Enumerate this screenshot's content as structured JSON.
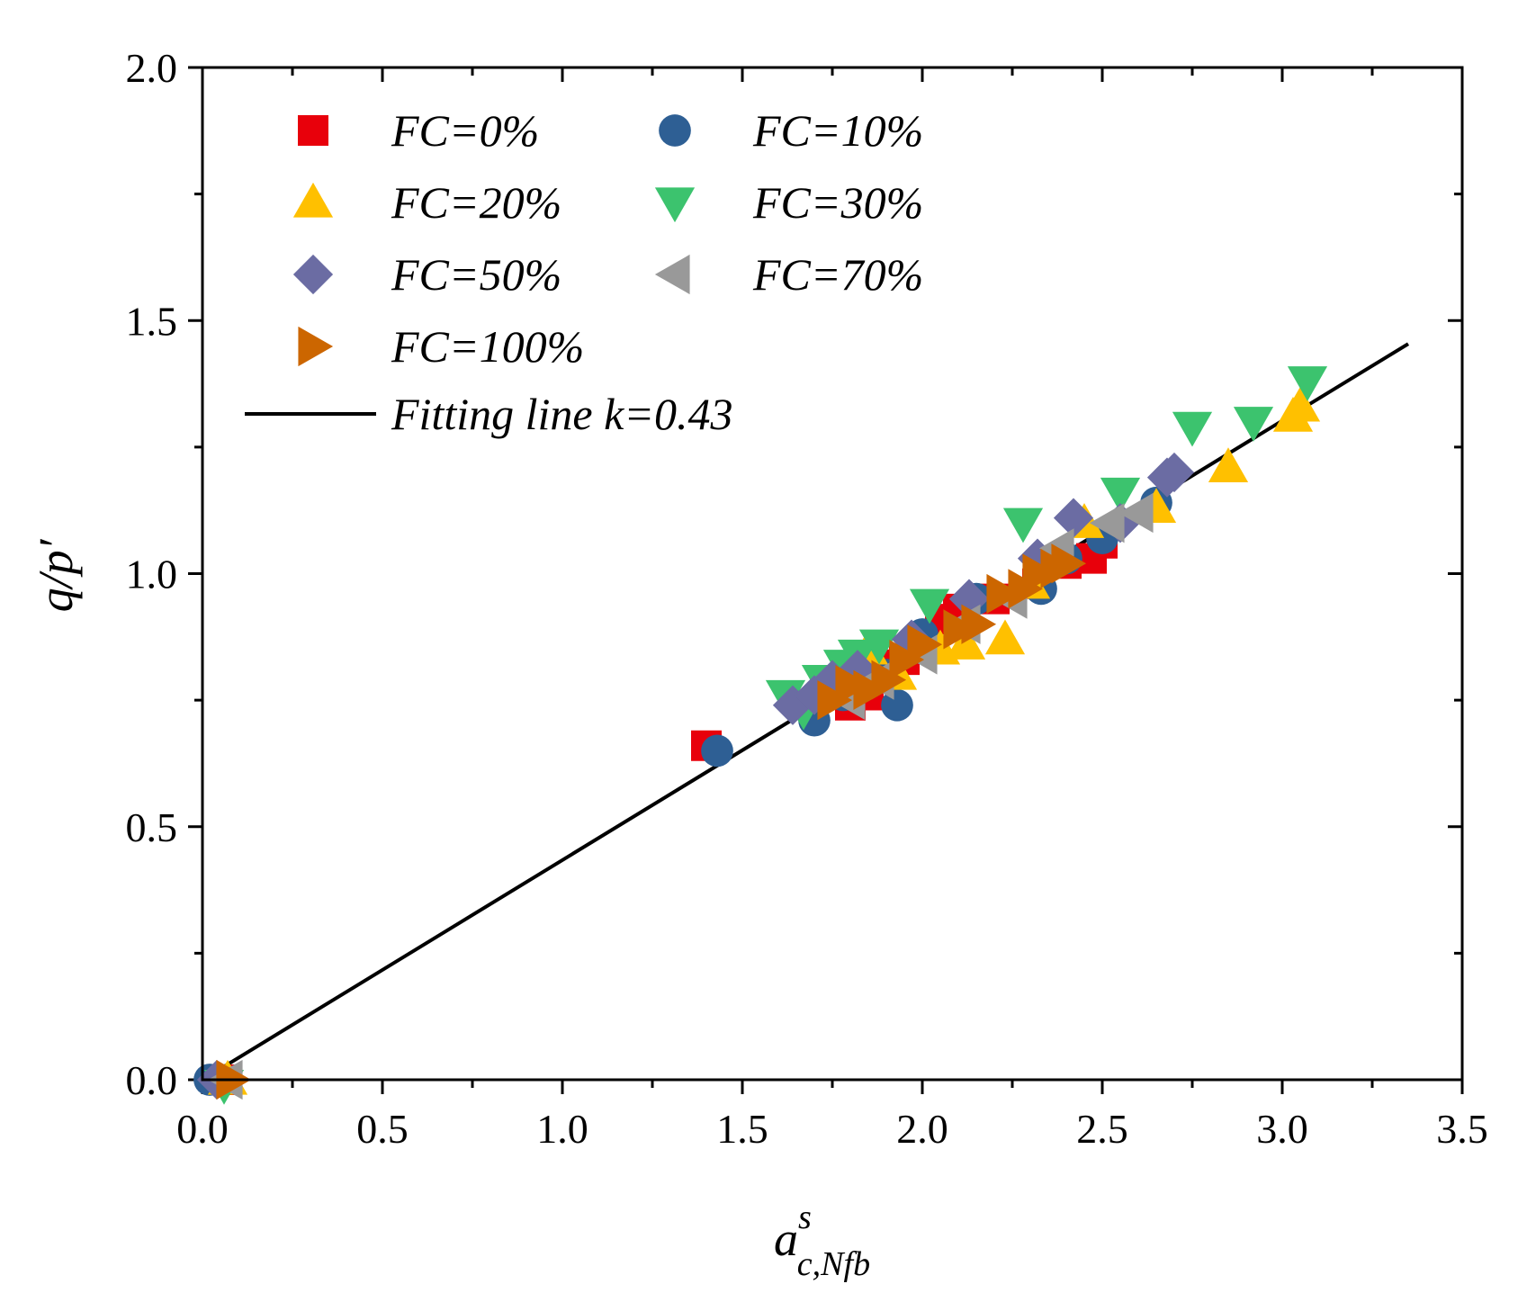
{
  "chart_data": {
    "type": "scatter",
    "xlabel": {
      "base": "a",
      "sup": "s",
      "sub": "c,Nfb"
    },
    "ylabel": "q/p′",
    "xlim": [
      0,
      3.5
    ],
    "ylim": [
      0,
      2.0
    ],
    "x_ticks": [
      "0.0",
      "0.5",
      "1.0",
      "1.5",
      "2.0",
      "2.5",
      "3.0",
      "3.5"
    ],
    "y_ticks": [
      "0.0",
      "0.5",
      "1.0",
      "1.5",
      "2.0"
    ],
    "series": [
      {
        "name": "FC=0%",
        "marker": "square",
        "color": "#e8000b",
        "points": [
          [
            0.05,
            0.0
          ],
          [
            1.4,
            0.66
          ],
          [
            1.8,
            0.74
          ],
          [
            1.85,
            0.76
          ],
          [
            1.88,
            0.82
          ],
          [
            1.95,
            0.83
          ],
          [
            2.05,
            0.91
          ],
          [
            2.1,
            0.93
          ],
          [
            2.2,
            0.95
          ],
          [
            2.32,
            0.98
          ],
          [
            2.4,
            1.02
          ],
          [
            2.47,
            1.03
          ],
          [
            2.5,
            1.06
          ]
        ]
      },
      {
        "name": "FC=10%",
        "marker": "circle",
        "color": "#2e5f94",
        "points": [
          [
            0.02,
            0.0
          ],
          [
            1.43,
            0.65
          ],
          [
            1.7,
            0.71
          ],
          [
            1.78,
            0.76
          ],
          [
            1.9,
            0.8
          ],
          [
            1.93,
            0.74
          ],
          [
            2.0,
            0.88
          ],
          [
            2.15,
            0.95
          ],
          [
            2.33,
            0.97
          ],
          [
            2.4,
            1.03
          ],
          [
            2.5,
            1.07
          ],
          [
            2.65,
            1.14
          ]
        ]
      },
      {
        "name": "FC=20%",
        "marker": "triangle-up",
        "color": "#ffc000",
        "points": [
          [
            0.07,
            0.0
          ],
          [
            1.85,
            0.85
          ],
          [
            1.93,
            0.8
          ],
          [
            2.05,
            0.85
          ],
          [
            2.12,
            0.86
          ],
          [
            2.23,
            0.87
          ],
          [
            2.3,
            0.98
          ],
          [
            2.45,
            1.1
          ],
          [
            2.65,
            1.13
          ],
          [
            2.85,
            1.21
          ],
          [
            3.03,
            1.31
          ],
          [
            3.05,
            1.33
          ]
        ]
      },
      {
        "name": "FC=30%",
        "marker": "triangle-down",
        "color": "#3cc36e",
        "points": [
          [
            0.06,
            -0.01
          ],
          [
            1.62,
            0.76
          ],
          [
            1.67,
            0.73
          ],
          [
            1.72,
            0.79
          ],
          [
            1.78,
            0.82
          ],
          [
            1.82,
            0.84
          ],
          [
            1.88,
            0.86
          ],
          [
            2.02,
            0.94
          ],
          [
            2.28,
            1.1
          ],
          [
            2.55,
            1.16
          ],
          [
            2.75,
            1.29
          ],
          [
            2.92,
            1.3
          ],
          [
            3.07,
            1.38
          ]
        ]
      },
      {
        "name": "FC=50%",
        "marker": "diamond",
        "color": "#6b6ca3",
        "points": [
          [
            0.04,
            0.0
          ],
          [
            1.64,
            0.74
          ],
          [
            1.7,
            0.76
          ],
          [
            1.75,
            0.79
          ],
          [
            1.82,
            0.81
          ],
          [
            1.97,
            0.87
          ],
          [
            2.13,
            0.95
          ],
          [
            2.32,
            1.03
          ],
          [
            2.42,
            1.11
          ],
          [
            2.55,
            1.1
          ],
          [
            2.68,
            1.19
          ],
          [
            2.7,
            1.2
          ]
        ]
      },
      {
        "name": "FC=70%",
        "marker": "triangle-left",
        "color": "#999999",
        "points": [
          [
            0.07,
            0.0
          ],
          [
            1.8,
            0.75
          ],
          [
            1.88,
            0.79
          ],
          [
            2.0,
            0.84
          ],
          [
            2.12,
            0.9
          ],
          [
            2.25,
            0.95
          ],
          [
            2.38,
            1.05
          ],
          [
            2.52,
            1.1
          ],
          [
            2.6,
            1.12
          ]
        ]
      },
      {
        "name": "FC=100%",
        "marker": "triangle-right",
        "color": "#cc6600",
        "points": [
          [
            0.08,
            0.0
          ],
          [
            1.75,
            0.75
          ],
          [
            1.8,
            0.78
          ],
          [
            1.85,
            0.77
          ],
          [
            1.9,
            0.79
          ],
          [
            1.95,
            0.83
          ],
          [
            2.0,
            0.86
          ],
          [
            2.1,
            0.89
          ],
          [
            2.15,
            0.9
          ],
          [
            2.22,
            0.96
          ],
          [
            2.28,
            0.97
          ],
          [
            2.32,
            1.0
          ],
          [
            2.37,
            1.01
          ],
          [
            2.4,
            1.02
          ]
        ]
      }
    ],
    "fit_line": {
      "label": "Fitting line k=0.43",
      "color": "#000000",
      "x": [
        0,
        3.35
      ],
      "slope": 0.434
    }
  }
}
